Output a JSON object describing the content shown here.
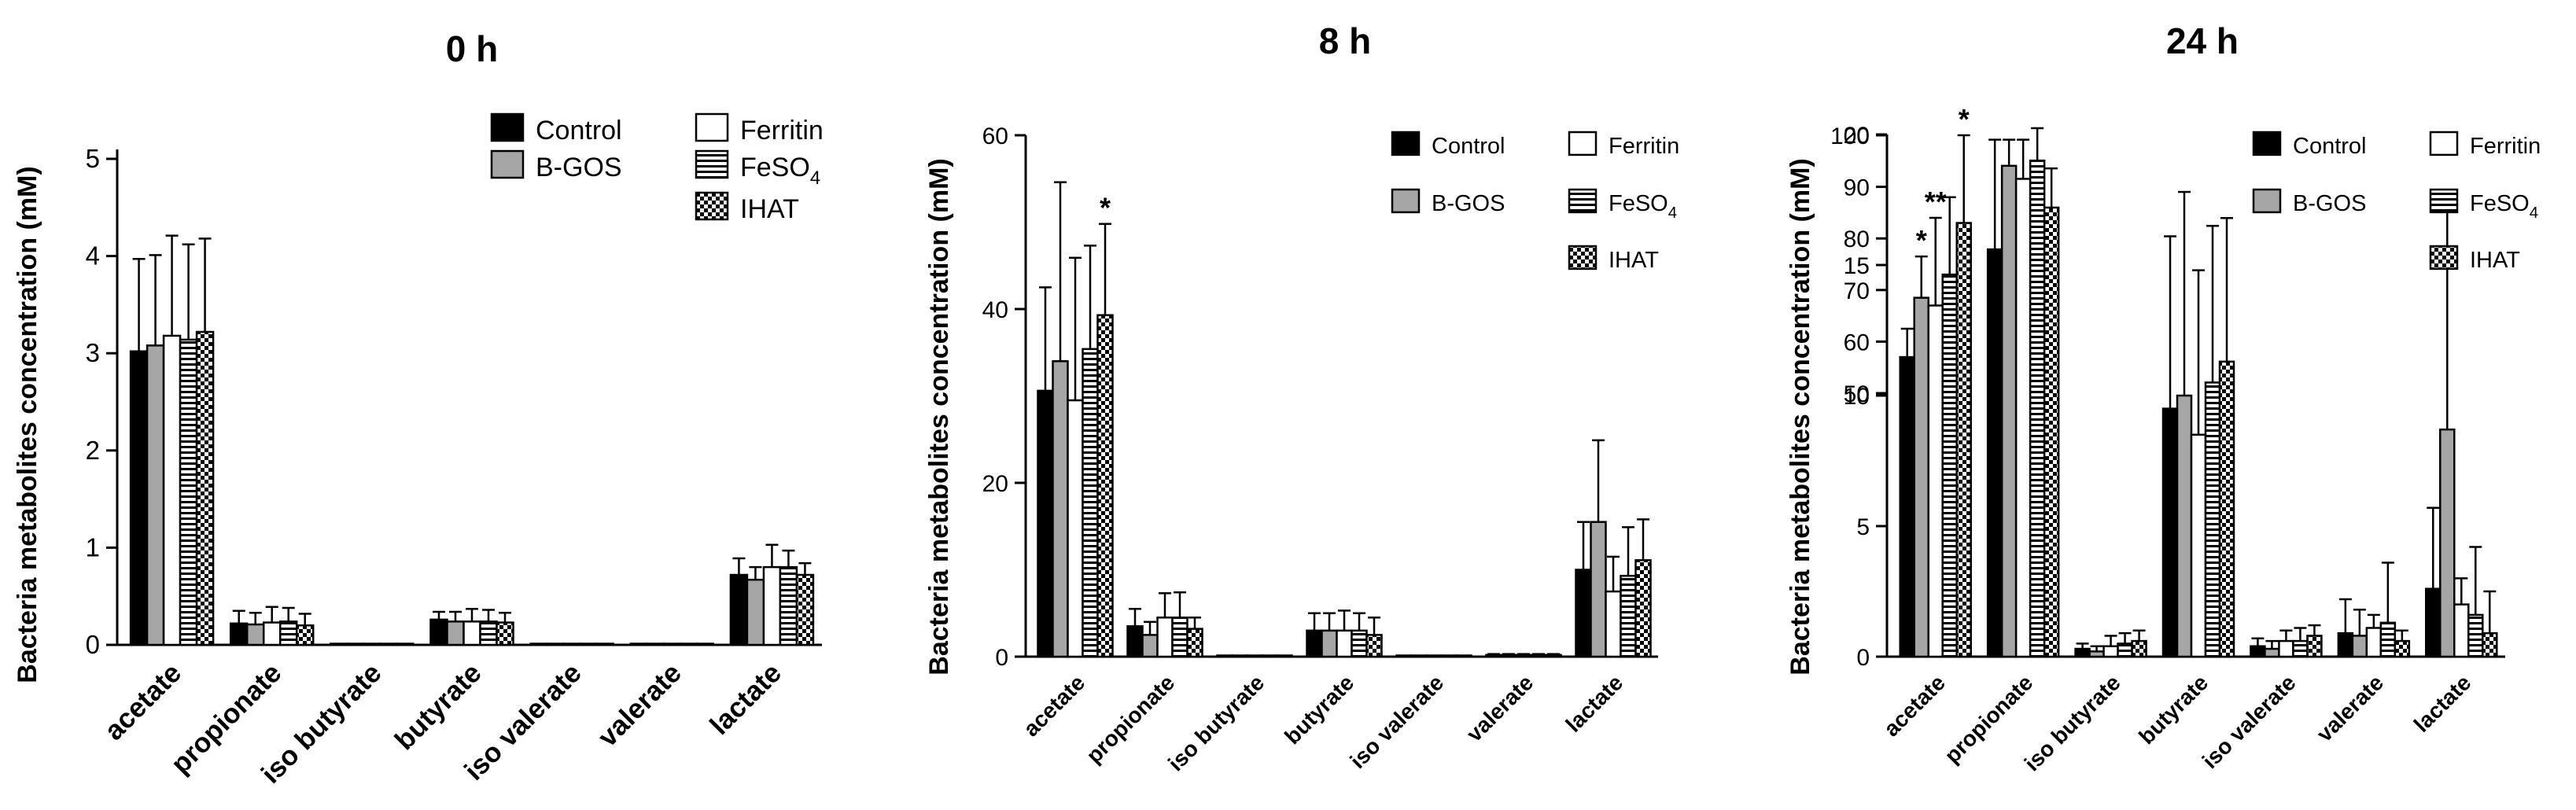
{
  "legend_items": [
    {
      "name": "Control",
      "pattern": "black"
    },
    {
      "name": "B-GOS",
      "pattern": "gray"
    },
    {
      "name": "Ferritin",
      "pattern": "white"
    },
    {
      "name": "FeSO4",
      "label_main": "FeSO",
      "label_sub": "4",
      "pattern": "hlines"
    },
    {
      "name": "IHAT",
      "pattern": "checker"
    }
  ],
  "colors": {
    "control": "#000000",
    "bgos": "#a6a6a6",
    "ferritin": "#ffffff",
    "stroke": "#000000"
  },
  "chart_data": [
    {
      "type": "bar",
      "title": "0 h",
      "ylabel": "Bacteria metabolites concentration (mM)",
      "xlabel": "",
      "categories": [
        "acetate",
        "propionate",
        "iso butyrate",
        "butyrate",
        "iso valerate",
        "valerate",
        "lactate"
      ],
      "ylim": [
        0,
        5
      ],
      "yticks": [
        0,
        1,
        2,
        3,
        4,
        5
      ],
      "series": [
        {
          "name": "Control",
          "values": [
            3.02,
            0.22,
            0.0,
            0.26,
            0.01,
            0.0,
            0.72
          ],
          "errors": [
            0.95,
            0.13,
            0.0,
            0.08,
            0.0,
            0.0,
            0.17
          ]
        },
        {
          "name": "B-GOS",
          "values": [
            3.08,
            0.21,
            0.0,
            0.24,
            0.01,
            0.01,
            0.67
          ],
          "errors": [
            0.93,
            0.12,
            0.0,
            0.1,
            0.0,
            0.0,
            0.13
          ]
        },
        {
          "name": "Ferritin",
          "values": [
            3.18,
            0.23,
            0.0,
            0.24,
            0.01,
            0.01,
            0.8
          ],
          "errors": [
            1.03,
            0.16,
            0.0,
            0.13,
            0.0,
            0.0,
            0.23
          ]
        },
        {
          "name": "FeSO4",
          "values": [
            3.14,
            0.24,
            0.0,
            0.24,
            0.01,
            0.01,
            0.8
          ],
          "errors": [
            0.98,
            0.14,
            0.0,
            0.12,
            0.0,
            0.0,
            0.17
          ]
        },
        {
          "name": "IHAT",
          "values": [
            3.22,
            0.2,
            0.0,
            0.23,
            0.01,
            0.01,
            0.72
          ],
          "errors": [
            0.96,
            0.12,
            0.0,
            0.1,
            0.0,
            0.0,
            0.12
          ]
        }
      ],
      "annotations": []
    },
    {
      "type": "bar",
      "title": "8 h",
      "ylabel": "Bacteria metabolites concentration (mM)",
      "xlabel": "",
      "categories": [
        "acetate",
        "propionate",
        "iso butyrate",
        "butyrate",
        "iso valerate",
        "valerate",
        "lactate"
      ],
      "ylim": [
        0,
        60
      ],
      "yticks": [
        0,
        20,
        40,
        60
      ],
      "series": [
        {
          "name": "Control",
          "values": [
            30.6,
            3.5,
            0.1,
            3.0,
            0.1,
            0.2,
            10.0
          ],
          "errors": [
            11.9,
            2.0,
            0.0,
            2.0,
            0.0,
            0.1,
            5.5
          ]
        },
        {
          "name": "B-GOS",
          "values": [
            34.0,
            2.5,
            0.1,
            3.0,
            0.1,
            0.2,
            15.5
          ],
          "errors": [
            20.6,
            1.5,
            0.0,
            2.0,
            0.0,
            0.1,
            9.4
          ]
        },
        {
          "name": "Ferritin",
          "values": [
            29.5,
            4.5,
            0.1,
            3.0,
            0.1,
            0.2,
            7.5
          ],
          "errors": [
            16.4,
            2.8,
            0.0,
            2.3,
            0.0,
            0.1,
            4.0
          ]
        },
        {
          "name": "FeSO4",
          "values": [
            35.4,
            4.5,
            0.1,
            3.0,
            0.1,
            0.2,
            9.3
          ],
          "errors": [
            11.9,
            2.9,
            0.0,
            2.0,
            0.0,
            0.1,
            5.6
          ]
        },
        {
          "name": "IHAT",
          "values": [
            39.3,
            3.2,
            0.1,
            2.5,
            0.1,
            0.2,
            11.1
          ],
          "errors": [
            10.5,
            1.3,
            0.0,
            2.0,
            0.0,
            0.1,
            4.7
          ]
        }
      ],
      "annotations": [
        {
          "text": "*",
          "category": "acetate",
          "series": "IHAT"
        }
      ]
    },
    {
      "type": "bar",
      "title": "24 h",
      "ylabel": "Bacteria metabolites concentration (mM)",
      "xlabel": "",
      "categories": [
        "acetate",
        "propionate",
        "iso butyrate",
        "butyrate",
        "iso valerate",
        "valerate",
        "lactate"
      ],
      "axis_break": {
        "lower": [
          0,
          20
        ],
        "upper": [
          50,
          100
        ]
      },
      "yticks_lower": [
        0,
        5,
        10,
        15,
        20
      ],
      "yticks_upper": [
        50,
        60,
        70,
        80,
        90,
        100
      ],
      "series": [
        {
          "name": "Control",
          "values": [
            57,
            15.6,
            0.3,
            9.5,
            0.4,
            0.9,
            2.6
          ],
          "errors": [
            5.5,
            4.2,
            0.2,
            6.6,
            0.3,
            1.3,
            3.1
          ]
        },
        {
          "name": "B-GOS",
          "values": [
            68.5,
            18.8,
            0.2,
            10.0,
            0.3,
            0.8,
            8.7
          ],
          "errors": [
            8.0,
            1.0,
            0.2,
            7.8,
            0.3,
            1.0,
            8.7
          ]
        },
        {
          "name": "Ferritin",
          "values": [
            67,
            18.3,
            0.4,
            8.5,
            0.6,
            1.1,
            2.0
          ],
          "errors": [
            17.0,
            1.5,
            0.4,
            6.3,
            0.4,
            0.5,
            1.0
          ]
        },
        {
          "name": "FeSO4",
          "values": [
            73,
            19.0,
            0.5,
            10.5,
            0.6,
            1.3,
            1.6
          ],
          "errors": [
            15.0,
            1.2,
            0.4,
            6.0,
            0.5,
            2.3,
            2.6
          ]
        },
        {
          "name": "IHAT",
          "values": [
            83,
            17.2,
            0.6,
            11.3,
            0.8,
            0.6,
            0.9
          ],
          "errors": [
            17.0,
            1.5,
            0.4,
            5.5,
            0.4,
            0.4,
            1.6
          ]
        }
      ],
      "annotations": [
        {
          "text": "*",
          "category": "acetate",
          "series": "B-GOS"
        },
        {
          "text": "**",
          "category": "acetate",
          "series": "Ferritin"
        },
        {
          "text": "*",
          "category": "acetate",
          "series": "IHAT"
        }
      ]
    }
  ]
}
